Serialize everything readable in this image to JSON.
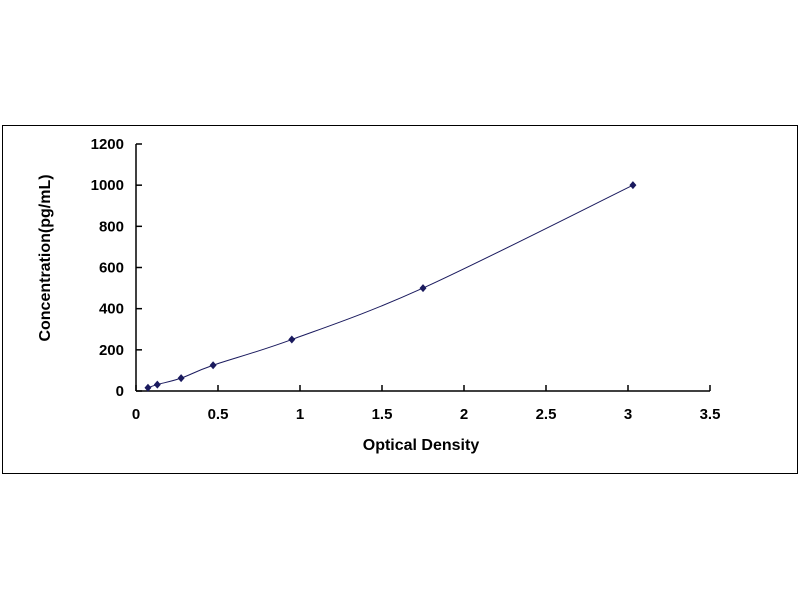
{
  "chart_data": {
    "type": "scatter",
    "title": "",
    "xlabel": "Optical Density",
    "ylabel": "Concentration(pg/mL)",
    "xlim": [
      0,
      3.5
    ],
    "ylim": [
      0,
      1200
    ],
    "xticks": [
      "0",
      "0.5",
      "1",
      "1.5",
      "2",
      "2.5",
      "3",
      "3.5"
    ],
    "yticks": [
      "0",
      "200",
      "400",
      "600",
      "800",
      "1000",
      "1200"
    ],
    "grid": false,
    "legend": "none",
    "marker": "diamond",
    "line": "smooth curve through points",
    "color": "#1a1a5e",
    "points": [
      {
        "x": 0.073,
        "y": 15.6
      },
      {
        "x": 0.13,
        "y": 31.25
      },
      {
        "x": 0.275,
        "y": 62.5
      },
      {
        "x": 0.47,
        "y": 125
      },
      {
        "x": 0.95,
        "y": 250
      },
      {
        "x": 1.75,
        "y": 500
      },
      {
        "x": 3.03,
        "y": 1000
      }
    ]
  }
}
